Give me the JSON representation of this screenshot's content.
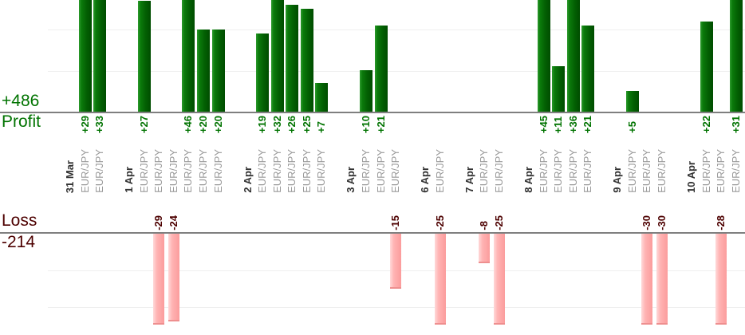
{
  "chart_data": {
    "type": "bar",
    "description": "Daily trade profit/loss bar chart, profits above upper axis in green, losses below lower axis in pink",
    "symbol_label": "EUR/JPY",
    "groups": [
      {
        "date": "31 Mar",
        "trades": [
          29,
          33
        ]
      },
      {
        "date": "1 Apr",
        "trades": [
          27,
          -29,
          -24,
          46,
          20,
          20
        ]
      },
      {
        "date": "2 Apr",
        "trades": [
          19,
          32,
          26,
          25,
          7
        ]
      },
      {
        "date": "3 Apr",
        "trades": [
          10,
          21,
          -15
        ]
      },
      {
        "date": "6 Apr",
        "trades": [
          -25
        ]
      },
      {
        "date": "7 Apr",
        "trades": [
          -8,
          -25
        ]
      },
      {
        "date": "8 Apr",
        "trades": [
          45,
          11,
          36,
          21
        ]
      },
      {
        "date": "9 Apr",
        "trades": [
          5,
          -30,
          -30
        ]
      },
      {
        "date": "10 Apr",
        "trades": [
          22,
          -28,
          31
        ]
      }
    ],
    "profit_section": {
      "label": "Profit",
      "total": "+486"
    },
    "loss_section": {
      "label": "Loss",
      "total": "-214"
    },
    "gridline_interval": 10,
    "profit_ylim_visible": [
      0,
      27
    ],
    "loss_ylim_visible": [
      -25,
      0
    ],
    "legend": "none",
    "grid": "on",
    "colors": {
      "profit_text": "#007300",
      "loss_text": "#4d0000",
      "date_text": "#333333",
      "symbol_text": "#9a9a9a",
      "profit_bar_gradient": [
        "#2e9b2e",
        "#0b7a0b",
        "#036003",
        "#004c00"
      ],
      "loss_bar_gradient": [
        "#ffd9d9",
        "#ffb3b3",
        "#fb9c9c"
      ],
      "loss_bar_edge": "#ee8f8f",
      "axis_line": "#7f7f7f",
      "gridline": "#efefef"
    }
  }
}
